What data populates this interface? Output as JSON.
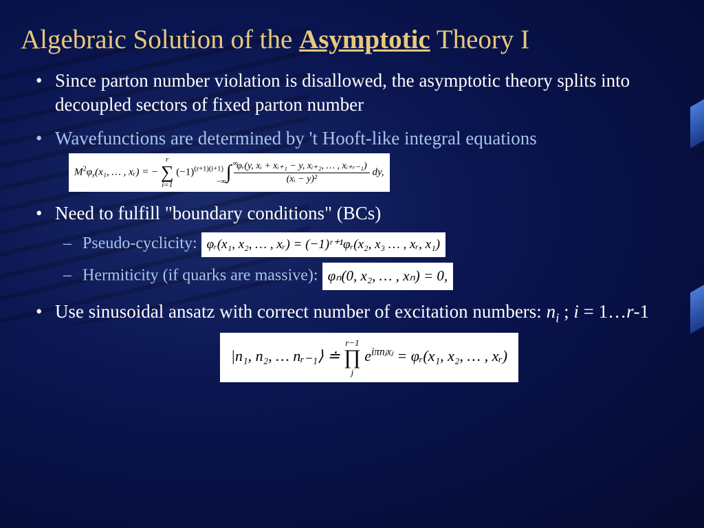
{
  "title_pre": "Algebraic Solution of  the ",
  "title_bold": "Asymptotic",
  "title_post": " Theory I",
  "bullets": {
    "b1": "Since parton number violation is disallowed, the asymptotic theory splits into decoupled sectors of fixed parton number",
    "b2": "Wavefunctions are determined by 't Hooft-like integral equations",
    "b3": "Need to fulfill \"boundary conditions\" (BCs)",
    "b3a": "Pseudo-cyclicity:  ",
    "b3b": "Hermiticity (if quarks are massive):  ",
    "b4_pre": "Use sinusoidal ansatz with correct number of excitation numbers: ",
    "b4_ni": "n",
    "b4_sub": "i",
    "b4_sep": "  ;  ",
    "b4_i": "i",
    "b4_eq": " = 1…",
    "b4_r": "r",
    "b4_m1": "-1"
  },
  "eq1": {
    "lhs_M": "M",
    "lhs_sq": "2",
    "lhs_phi": "φ",
    "lhs_r": "r",
    "lhs_args": "(x₁, … , xᵣ) = − ",
    "sum_top": "r",
    "sum_bot": "i=1",
    "neg1": "(−1)",
    "neg1_exp": "(r+1)(i+1)",
    "int_top": "∞",
    "int_bot": "−∞",
    "frac_num": "φᵣ(y, xᵢ + xᵢ₊₁ − y, xᵢ₊₂, … , xᵢ₊ᵣ₋₁)",
    "frac_den": "(xᵢ − y)²",
    "dy": "dy,"
  },
  "eq2": {
    "text": "φᵣ(x₁, x₂, … , xᵣ) = (−1)ʳ⁺¹φᵣ(x₂, x₃ … , xᵣ, x₁)"
  },
  "eq3": {
    "text": "φₙ(0, x₂, … , xₙ) = 0,"
  },
  "eq4": {
    "ket": "|n₁, n₂, … nᵣ₋₁⟩ ≐ ",
    "prod_top": "r−1",
    "prod_bot": "j",
    "exp": "eⁱᵖnⱼxⱼ",
    "rhs": " = φᵣ(x₁, x₂, … , xᵣ)",
    "pi": "π"
  },
  "colors": {
    "title": "#e8c97a",
    "text_white": "#ffffff",
    "text_blue": "#a8c4e8",
    "eq_bg": "#ffffff",
    "eq_fg": "#000000"
  }
}
